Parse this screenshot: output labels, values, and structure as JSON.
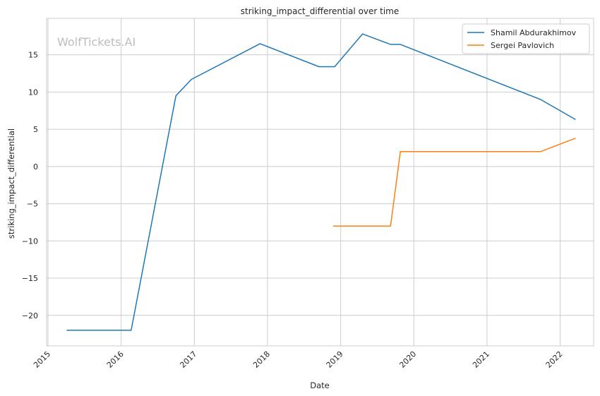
{
  "watermark": "WolfTickets.AI",
  "chart_data": {
    "type": "line",
    "title": "striking_impact_differential over time",
    "xlabel": "Date",
    "ylabel": "striking_impact_differential",
    "x_ticks": [
      "2015",
      "2016",
      "2017",
      "2018",
      "2019",
      "2020",
      "2021",
      "2022"
    ],
    "y_ticks": [
      -20,
      -15,
      -10,
      -5,
      0,
      5,
      10,
      15
    ],
    "y_tick_labels": [
      "−20",
      "−15",
      "−10",
      "−5",
      "0",
      "5",
      "10",
      "15"
    ],
    "xlim": [
      "2014-12-25",
      "2022-06-17"
    ],
    "ylim": [
      -24.1,
      19.9
    ],
    "grid": true,
    "legend_position": "top-right",
    "series": [
      {
        "name": "Shamil Abdurakhimov",
        "color": "#1f77b4",
        "points": [
          {
            "x": "2015-04-04",
            "y": -22.0
          },
          {
            "x": "2016-02-20",
            "y": -22.0
          },
          {
            "x": "2016-10-01",
            "y": 9.5
          },
          {
            "x": "2016-12-17",
            "y": 11.7
          },
          {
            "x": "2017-11-25",
            "y": 16.5
          },
          {
            "x": "2018-09-15",
            "y": 13.4
          },
          {
            "x": "2018-12-02",
            "y": 13.4
          },
          {
            "x": "2019-04-20",
            "y": 17.8
          },
          {
            "x": "2019-09-07",
            "y": 16.4
          },
          {
            "x": "2019-10-26",
            "y": 16.4
          },
          {
            "x": "2021-09-25",
            "y": 9.0
          },
          {
            "x": "2022-03-19",
            "y": 6.3
          }
        ]
      },
      {
        "name": "Sergei Pavlovich",
        "color": "#ff7f0e",
        "points": [
          {
            "x": "2018-11-24",
            "y": -8.0
          },
          {
            "x": "2019-09-07",
            "y": -8.0
          },
          {
            "x": "2019-10-26",
            "y": 2.0
          },
          {
            "x": "2021-09-25",
            "y": 2.0
          },
          {
            "x": "2022-03-19",
            "y": 3.8
          }
        ]
      }
    ]
  }
}
